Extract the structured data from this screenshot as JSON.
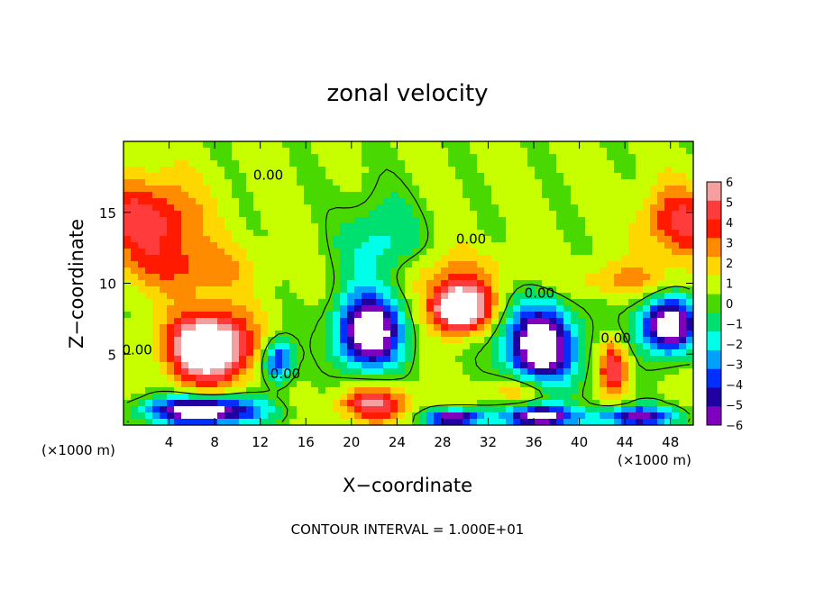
{
  "chart_data": {
    "type": "heatmap",
    "title": "zonal velocity",
    "xlabel": "X−coordinate",
    "ylabel": "Z−coordinate",
    "x_unit_left": "(×1000 m)",
    "x_unit_right": "(×1000 m)",
    "xlim": [
      0,
      50
    ],
    "ylim": [
      0,
      20
    ],
    "xticks": [
      4,
      8,
      12,
      16,
      20,
      24,
      28,
      32,
      36,
      40,
      44,
      48
    ],
    "xtick_labels": [
      "4",
      "8",
      "12",
      "16",
      "20",
      "24",
      "28",
      "32",
      "36",
      "40",
      "44",
      "48"
    ],
    "yticks": [
      5,
      10,
      15
    ],
    "ytick_labels": [
      "5",
      "10",
      "15"
    ],
    "colorbar": {
      "levels": [
        6,
        5,
        4,
        3,
        2,
        1,
        0,
        -1,
        -2,
        -3,
        -4,
        -5,
        -6
      ],
      "labels": [
        "6",
        "5",
        "4",
        "3",
        "2",
        "1",
        "0",
        "−1",
        "−2",
        "−3",
        "−4",
        "−5",
        "−6"
      ],
      "colors": [
        "#f4a0a0",
        "#ff3b3b",
        "#ff1a00",
        "#ff8c00",
        "#ffd700",
        "#c8ff00",
        "#49d800",
        "#00e070",
        "#00ffe8",
        "#00a0ff",
        "#0030ff",
        "#2000a0",
        "#8000c0"
      ],
      "range": [
        -6,
        6
      ]
    },
    "blobs": [
      {
        "kind": "warm",
        "x": 2,
        "z": 14.5,
        "rx": 4.5,
        "rz": 3,
        "v": 4.5
      },
      {
        "kind": "warm",
        "x": 49,
        "z": 14.3,
        "rx": 3.5,
        "rz": 2.5,
        "v": 4.2
      },
      {
        "kind": "warm",
        "x": 6,
        "z": 11,
        "rx": 5,
        "rz": 2,
        "v": 2.5
      },
      {
        "kind": "warm",
        "x": 28,
        "z": 10.5,
        "rx": 6,
        "rz": 1.8,
        "v": 2.2
      },
      {
        "kind": "warm",
        "x": 44,
        "z": 10.2,
        "rx": 5,
        "rz": 1.2,
        "v": 2
      },
      {
        "kind": "warm",
        "x": 7.5,
        "z": 5.5,
        "rx": 3.5,
        "rz": 2.5,
        "v": 9
      },
      {
        "kind": "warm",
        "x": 29.5,
        "z": 8.2,
        "rx": 2.5,
        "rz": 1.6,
        "v": 9
      },
      {
        "kind": "warm",
        "x": 43,
        "z": 4,
        "rx": 1.2,
        "rz": 1.8,
        "v": 5
      },
      {
        "kind": "warm",
        "x": 22,
        "z": 1.5,
        "rx": 3,
        "rz": 1.2,
        "v": 5
      },
      {
        "kind": "warm",
        "x": 35,
        "z": 2.5,
        "rx": 3,
        "rz": 1.2,
        "v": 3
      },
      {
        "kind": "cold",
        "x": 22.5,
        "z": 12,
        "rx": 3.5,
        "rz": 4,
        "v": -3
      },
      {
        "kind": "cold",
        "x": 13.5,
        "z": 4.5,
        "rx": 1.3,
        "rz": 1.5,
        "v": -6
      },
      {
        "kind": "cold",
        "x": 21.5,
        "z": 6.5,
        "rx": 2.8,
        "rz": 2.5,
        "v": -9
      },
      {
        "kind": "cold",
        "x": 36.5,
        "z": 5.5,
        "rx": 3.2,
        "rz": 3,
        "v": -9
      },
      {
        "kind": "cold",
        "x": 47.8,
        "z": 7,
        "rx": 2.5,
        "rz": 2,
        "v": -9
      },
      {
        "kind": "cold",
        "x": 7,
        "z": 1,
        "rx": 5,
        "rz": 1,
        "v": -9
      },
      {
        "kind": "cold",
        "x": 29,
        "z": 0.5,
        "rx": 2.5,
        "rz": 0.6,
        "v": -8
      },
      {
        "kind": "cold",
        "x": 36.5,
        "z": 0.6,
        "rx": 3,
        "rz": 0.8,
        "v": -8
      },
      {
        "kind": "cold",
        "x": 45,
        "z": 0.6,
        "rx": 3.5,
        "rz": 0.7,
        "v": -7
      }
    ],
    "contour_labels": [
      {
        "text": "0.00",
        "x": 12.7,
        "z": 17.3
      },
      {
        "text": "0.00",
        "x": 30.5,
        "z": 12.8
      },
      {
        "text": "0.00",
        "x": 36.5,
        "z": 9.0
      },
      {
        "text": "0.00",
        "x": 43.2,
        "z": 5.8
      },
      {
        "text": "0.00",
        "x": 1.2,
        "z": 5.0
      },
      {
        "text": "0.00",
        "x": 14.2,
        "z": 3.3
      }
    ],
    "footer": "CONTOUR INTERVAL = 1.000E+01"
  }
}
